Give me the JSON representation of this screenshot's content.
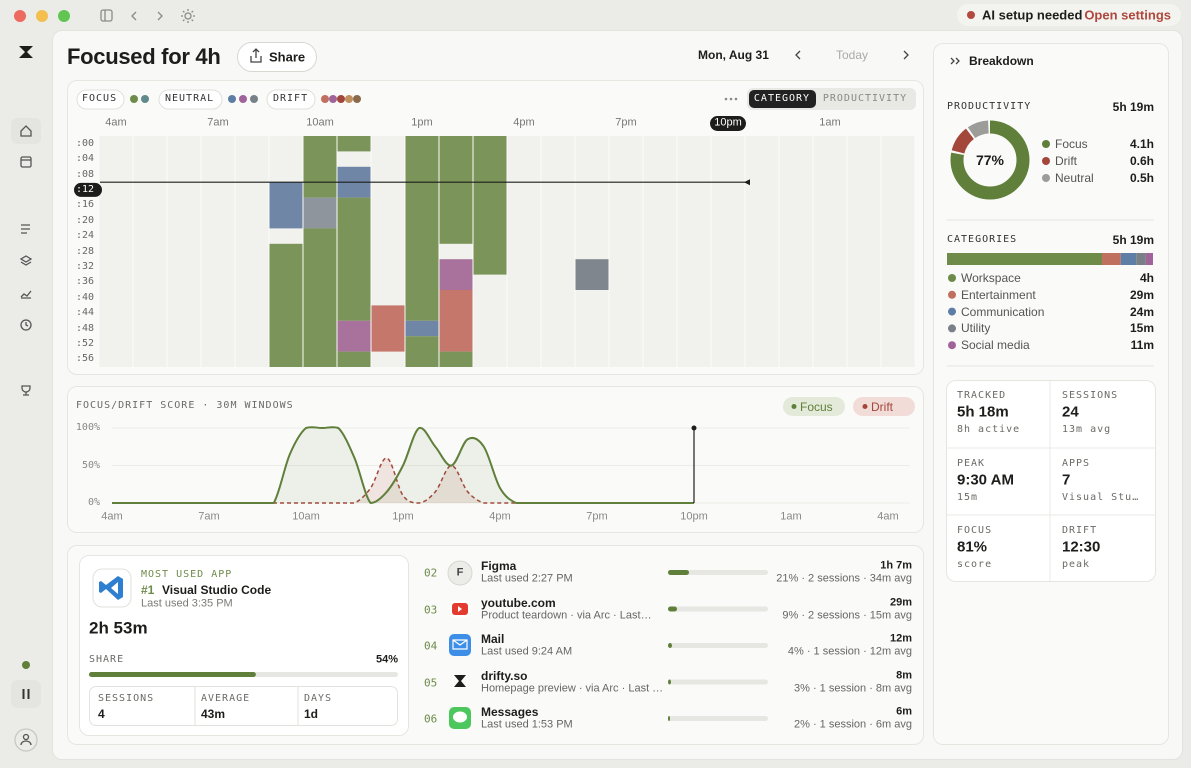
{
  "titlebar": {
    "status": "AI setup needed",
    "action": "Open settings"
  },
  "header": {
    "title": "Focused for 4h",
    "share": "Share",
    "date": "Mon, Aug 31",
    "today": "Today"
  },
  "timeline": {
    "legend": [
      "FOCUS",
      "NEUTRAL",
      "DRIFT"
    ],
    "tabs": [
      "CATEGORY",
      "PRODUCTIVITY"
    ],
    "xlim": [
      4,
      28
    ],
    "ylim": [
      0,
      60
    ],
    "xticks": [
      {
        "value": 4,
        "label": "4am"
      },
      {
        "value": 7,
        "label": "7am"
      },
      {
        "value": 10,
        "label": "10am"
      },
      {
        "value": 13,
        "label": "1pm"
      },
      {
        "value": 16,
        "label": "4pm"
      },
      {
        "value": 19,
        "label": "7pm"
      },
      {
        "value": 22,
        "label": "10pm"
      },
      {
        "value": 25,
        "label": "1am"
      }
    ],
    "yticks": [
      {
        "value": 0,
        "label": ":00"
      },
      {
        "value": 4,
        "label": ":04"
      },
      {
        "value": 8,
        "label": ":08"
      },
      {
        "value": 12,
        "label": ":12"
      },
      {
        "value": 16,
        "label": ":16"
      },
      {
        "value": 20,
        "label": ":20"
      },
      {
        "value": 24,
        "label": ":24"
      },
      {
        "value": 28,
        "label": ":28"
      },
      {
        "value": 32,
        "label": ":32"
      },
      {
        "value": 36,
        "label": ":36"
      },
      {
        "value": 40,
        "label": ":40"
      },
      {
        "value": 44,
        "label": ":44"
      },
      {
        "value": 48,
        "label": ":48"
      },
      {
        "value": 52,
        "label": ":52"
      },
      {
        "value": 56,
        "label": ":56"
      }
    ],
    "blocks": [
      {
        "hour": 9,
        "start": 12,
        "end": 24,
        "color": "#6f86a6"
      },
      {
        "hour": 9,
        "start": 28,
        "end": 60,
        "color": "#7a9459"
      },
      {
        "hour": 10,
        "start": 0,
        "end": 16,
        "color": "#7a9459"
      },
      {
        "hour": 10,
        "start": 16,
        "end": 24,
        "color": "#8e959c"
      },
      {
        "hour": 10,
        "start": 24,
        "end": 60,
        "color": "#7a9459"
      },
      {
        "hour": 11,
        "start": 0,
        "end": 4,
        "color": "#7a9459"
      },
      {
        "hour": 11,
        "start": 8,
        "end": 16,
        "color": "#6f86a6"
      },
      {
        "hour": 11,
        "start": 16,
        "end": 48,
        "color": "#7a9459"
      },
      {
        "hour": 11,
        "start": 48,
        "end": 56,
        "color": "#a8729d"
      },
      {
        "hour": 11,
        "start": 56,
        "end": 60,
        "color": "#7a9459"
      },
      {
        "hour": 12,
        "start": 44,
        "end": 56,
        "color": "#c4776a"
      },
      {
        "hour": 13,
        "start": 0,
        "end": 48,
        "color": "#7a9459"
      },
      {
        "hour": 13,
        "start": 48,
        "end": 52,
        "color": "#6f86a6"
      },
      {
        "hour": 13,
        "start": 52,
        "end": 60,
        "color": "#7a9459"
      },
      {
        "hour": 14,
        "start": 0,
        "end": 28,
        "color": "#7a9459"
      },
      {
        "hour": 14,
        "start": 32,
        "end": 40,
        "color": "#a8729d"
      },
      {
        "hour": 14,
        "start": 40,
        "end": 56,
        "color": "#c4776a"
      },
      {
        "hour": 14,
        "start": 56,
        "end": 60,
        "color": "#7a9459"
      },
      {
        "hour": 15,
        "start": 0,
        "end": 36,
        "color": "#7a9459"
      },
      {
        "hour": 18,
        "start": 32,
        "end": 40,
        "color": "#7f868e"
      }
    ]
  },
  "score": {
    "type": "line",
    "title": "FOCUS/DRIFT SCORE · 30M WINDOWS",
    "xlim": [
      4,
      28
    ],
    "xticks": [
      {
        "value": 4,
        "label": "4am"
      },
      {
        "value": 7,
        "label": "7am"
      },
      {
        "value": 10,
        "label": "10am"
      },
      {
        "value": 13,
        "label": "1pm"
      },
      {
        "value": 16,
        "label": "4pm"
      },
      {
        "value": 19,
        "label": "7pm"
      },
      {
        "value": 22,
        "label": "10pm"
      },
      {
        "value": 25,
        "label": "1am"
      },
      {
        "value": 28,
        "label": "4am"
      }
    ],
    "ylim": [
      0,
      100
    ],
    "yticks": [
      {
        "value": 0,
        "label": "0%"
      },
      {
        "value": 50,
        "label": "50%"
      },
      {
        "value": 100,
        "label": "100%"
      }
    ],
    "x": [
      4,
      4.5,
      5,
      5.5,
      6,
      6.5,
      7,
      7.5,
      8,
      8.5,
      9,
      9.5,
      10,
      10.5,
      11,
      11.5,
      12,
      12.5,
      13,
      13.5,
      14,
      14.5,
      15,
      15.5,
      16,
      16.5,
      17,
      17.5,
      18,
      18.5,
      19,
      19.5,
      20,
      20.5,
      21,
      21.5,
      22
    ],
    "series": [
      {
        "name": "Focus",
        "color": "#5f7f3a",
        "values": [
          0,
          0,
          0,
          0,
          0,
          0,
          0,
          0,
          0,
          0,
          0,
          65,
          100,
          100,
          100,
          60,
          0,
          15,
          50,
          100,
          75,
          50,
          85,
          75,
          20,
          0,
          0,
          0,
          0,
          0,
          0,
          0,
          0,
          0,
          0,
          0,
          0
        ]
      },
      {
        "name": "Drift",
        "color": "#a4473b",
        "values": [
          0,
          0,
          0,
          0,
          0,
          0,
          0,
          0,
          0,
          0,
          0,
          0,
          0,
          0,
          0,
          0,
          20,
          60,
          10,
          0,
          15,
          50,
          15,
          0,
          0,
          0,
          0,
          0,
          0,
          0,
          0,
          0,
          0,
          0,
          0,
          0,
          0
        ]
      }
    ]
  },
  "breakdown": {
    "title": "Breakdown",
    "productivity": {
      "label": "PRODUCTIVITY",
      "total": "5h 19m",
      "center": "77%",
      "series": [
        {
          "name": "Focus",
          "color": "#5f7f3a",
          "value": 4.1,
          "value_label": "4.1h"
        },
        {
          "name": "Drift",
          "color": "#a4473b",
          "value": 0.6,
          "value_label": "0.6h"
        },
        {
          "name": "Neutral",
          "color": "#9c9c98",
          "value": 0.5,
          "value_label": "0.5h"
        }
      ]
    },
    "categories": {
      "label": "CATEGORIES",
      "total": "5h 19m",
      "items": [
        {
          "name": "Workspace",
          "color": "#6e8b4a",
          "value": 240,
          "value_label": "4h"
        },
        {
          "name": "Entertainment",
          "color": "#c0705f",
          "value": 29,
          "value_label": "29m"
        },
        {
          "name": "Communication",
          "color": "#5f7ea6",
          "value": 24,
          "value_label": "24m"
        },
        {
          "name": "Utility",
          "color": "#7a8088",
          "value": 15,
          "value_label": "15m"
        },
        {
          "name": "Social media",
          "color": "#a0649a",
          "value": 11,
          "value_label": "11m"
        }
      ]
    },
    "stats": [
      {
        "label": "TRACKED",
        "value": "5h 18m",
        "sub": "8h active"
      },
      {
        "label": "SESSIONS",
        "value": "24",
        "sub": "13m avg"
      },
      {
        "label": "PEAK",
        "value": "9:30 AM",
        "sub": "15m"
      },
      {
        "label": "APPS",
        "value": "7",
        "sub": "Visual Stu…"
      },
      {
        "label": "FOCUS",
        "value": "81%",
        "sub": "score"
      },
      {
        "label": "DRIFT",
        "value": "12:30",
        "sub": "peak"
      }
    ]
  },
  "most_used": {
    "heading": "MOST USED APP",
    "rank": "#1",
    "name": "Visual Studio Code",
    "last_used": "Last used 3:35 PM",
    "duration": "2h 53m",
    "share_heading": "SHARE",
    "share": 54,
    "share_label": "54%",
    "stats": [
      {
        "label": "SESSIONS",
        "value": "4"
      },
      {
        "label": "AVERAGE",
        "value": "43m"
      },
      {
        "label": "DAYS",
        "value": "1d"
      }
    ]
  },
  "apps": [
    {
      "rank": "02",
      "name": "Figma",
      "initial": "F",
      "sub": "Last used 2:27 PM",
      "duration": "1h 7m",
      "share": 21,
      "meta": "21% · 2 sessions · 34m avg"
    },
    {
      "rank": "03",
      "name": "youtube.com",
      "sub": "Product teardown · via Arc · Last…",
      "duration": "29m",
      "share": 9,
      "meta": "9% · 2 sessions · 15m avg"
    },
    {
      "rank": "04",
      "name": "Mail",
      "sub": "Last used 9:24 AM",
      "duration": "12m",
      "share": 4,
      "meta": "4% · 1 session · 12m avg"
    },
    {
      "rank": "05",
      "name": "drifty.so",
      "sub": "Homepage preview · via Arc · Last …",
      "duration": "8m",
      "share": 3,
      "meta": "3% · 1 session · 8m avg"
    },
    {
      "rank": "06",
      "name": "Messages",
      "sub": "Last used 1:53 PM",
      "duration": "6m",
      "share": 2,
      "meta": "2% · 1 session · 6m avg"
    }
  ]
}
